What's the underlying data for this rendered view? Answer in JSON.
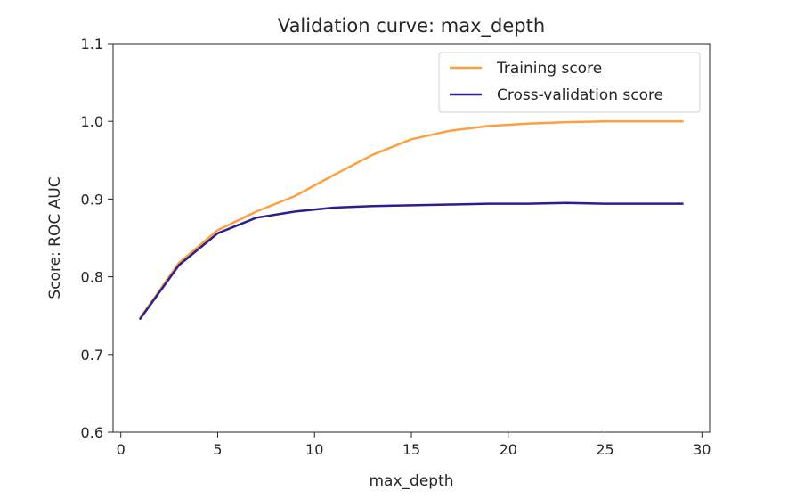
{
  "chart_data": {
    "type": "line",
    "title": "Validation curve: max_depth",
    "xlabel": "max_depth",
    "ylabel": "Score: ROC AUC",
    "xlim": [
      -0.4,
      30.4
    ],
    "ylim": [
      0.6,
      1.1
    ],
    "xticks": [
      "0",
      "5",
      "10",
      "15",
      "20",
      "25",
      "30"
    ],
    "yticks": [
      "0.6",
      "0.7",
      "0.8",
      "0.9",
      "1.0",
      "1.1"
    ],
    "grid": false,
    "legend_position": "top-right",
    "x": [
      1,
      3,
      5,
      7,
      9,
      11,
      13,
      15,
      17,
      19,
      21,
      23,
      25,
      27,
      29
    ],
    "series": [
      {
        "name": "Training score",
        "color": "#ff9f40",
        "values": [
          0.747,
          0.818,
          0.86,
          0.884,
          0.904,
          0.931,
          0.957,
          0.977,
          0.988,
          0.994,
          0.997,
          0.999,
          1.0,
          1.0,
          1.0
        ]
      },
      {
        "name": "Cross-validation score",
        "color": "#2a1f8f",
        "values": [
          0.746,
          0.815,
          0.856,
          0.876,
          0.884,
          0.889,
          0.891,
          0.892,
          0.893,
          0.894,
          0.894,
          0.895,
          0.894,
          0.894,
          0.894
        ]
      }
    ]
  }
}
